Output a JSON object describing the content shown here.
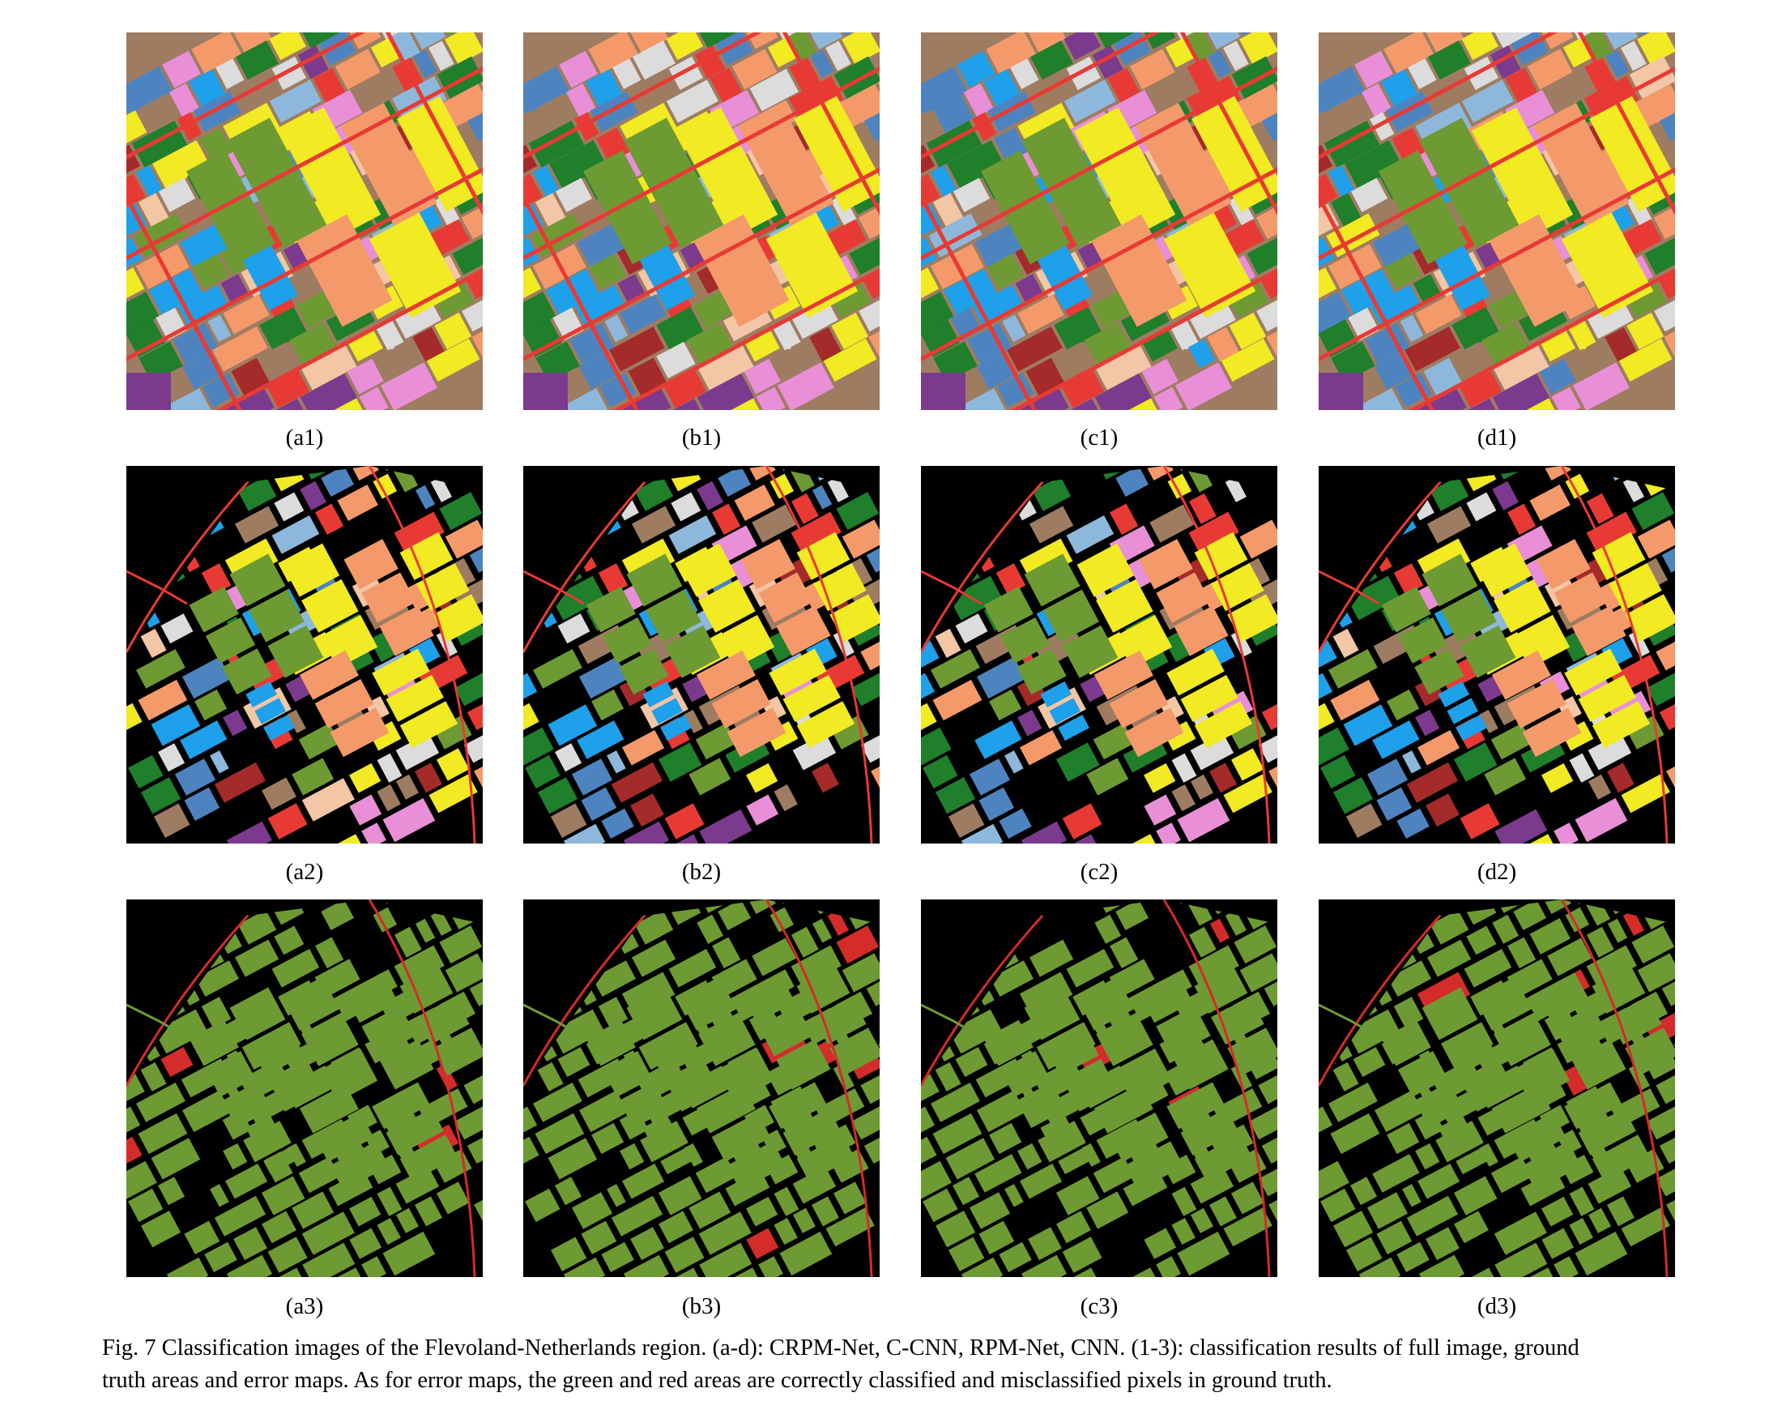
{
  "colors": {
    "background": "#000000",
    "error_correct": "#6d9a33",
    "error_wrong": "#d42b2b",
    "classes": [
      "#f2ea22",
      "#6d9a33",
      "#1f7f2b",
      "#a52a2a",
      "#9e7c62",
      "#f49a6a",
      "#1ea0ea",
      "#4d84c0",
      "#e98fd8",
      "#7b3a8e",
      "#f3c6a5",
      "#e83a34",
      "#dcdcdc",
      "#8db8dc"
    ]
  },
  "panels": [
    {
      "label": "(a1)",
      "kind": "full"
    },
    {
      "label": "(b1)",
      "kind": "full"
    },
    {
      "label": "(c1)",
      "kind": "full"
    },
    {
      "label": "(d1)",
      "kind": "full"
    },
    {
      "label": "(a2)",
      "kind": "gt"
    },
    {
      "label": "(b2)",
      "kind": "gt"
    },
    {
      "label": "(c2)",
      "kind": "gt"
    },
    {
      "label": "(d2)",
      "kind": "gt"
    },
    {
      "label": "(a3)",
      "kind": "error"
    },
    {
      "label": "(b3)",
      "kind": "error"
    },
    {
      "label": "(c3)",
      "kind": "error"
    },
    {
      "label": "(d3)",
      "kind": "error"
    }
  ],
  "caption": {
    "line1": "Fig. 7 Classification images of the Flevoland-Netherlands region. (a-d): CRPM-Net, C-CNN, RPM-Net, CNN. (1-3): classification results of full image, ground",
    "line2": "truth areas and error maps. As for error maps, the green and red areas are correctly classified and misclassified pixels in ground truth."
  }
}
